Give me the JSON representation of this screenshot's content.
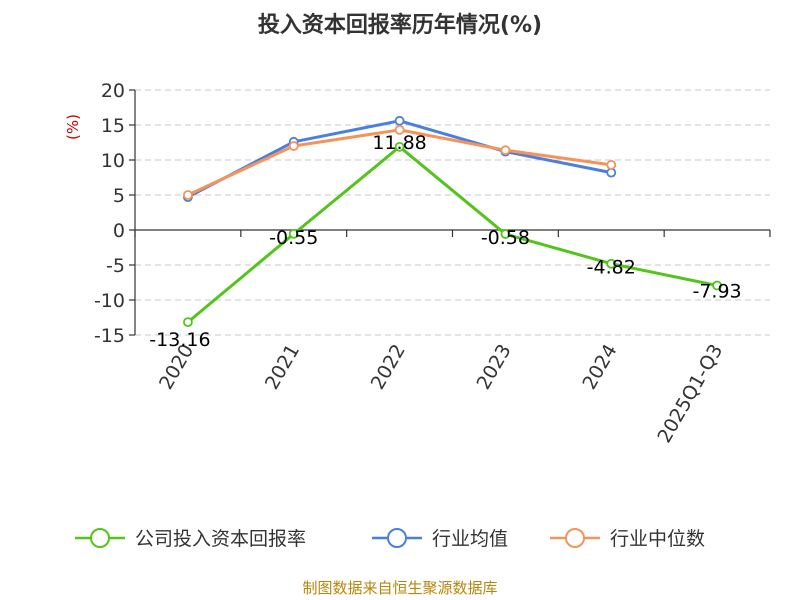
{
  "chart_data": {
    "type": "line",
    "title": "投入资本回报率历年情况(%)",
    "ylabel": "(%)",
    "xlabel": "",
    "categories": [
      "2020",
      "2021",
      "2022",
      "2023",
      "2024",
      "2025Q1-Q3"
    ],
    "ylim": [
      -15,
      20
    ],
    "yticks": [
      20,
      15,
      10,
      5,
      0,
      -5,
      -10,
      -15
    ],
    "grid": true,
    "legend_position": "bottom",
    "series": [
      {
        "name": "公司投入资本回报率",
        "color": "#52c41a",
        "values": [
          -13.16,
          -0.55,
          11.88,
          -0.58,
          -4.82,
          -7.93
        ],
        "labels": [
          "-13.16",
          "-0.55",
          "11.88",
          "-0.58",
          "-4.82",
          "-7.93"
        ]
      },
      {
        "name": "行业均值",
        "color": "#4a7fe0",
        "values": [
          4.7,
          12.6,
          15.6,
          11.2,
          8.2,
          null
        ]
      },
      {
        "name": "行业中位数",
        "color": "#f4935a",
        "values": [
          5.0,
          12.0,
          14.3,
          11.4,
          9.3,
          null
        ]
      }
    ]
  },
  "footer": "制图数据来自恒生聚源数据库"
}
